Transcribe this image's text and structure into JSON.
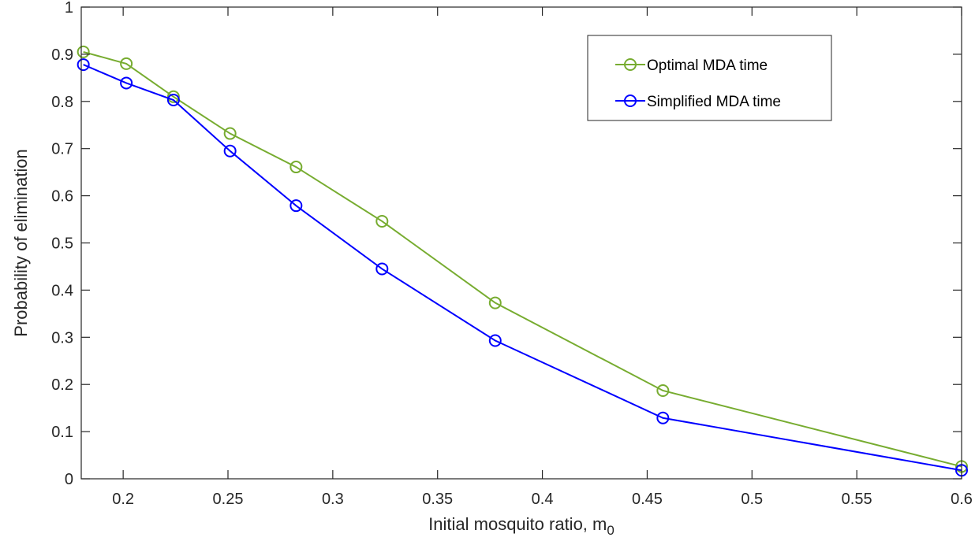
{
  "chart_data": {
    "type": "line",
    "xlabel": "Initial mosquito ratio, m",
    "xlabel_sub": "0",
    "ylabel": "Probability of elimination",
    "xlim": [
      0.18,
      0.6
    ],
    "ylim": [
      0,
      1
    ],
    "xticks": [
      0.2,
      0.25,
      0.3,
      0.35,
      0.4,
      0.45,
      0.5,
      0.55,
      0.6
    ],
    "xtick_labels": [
      "0.2",
      "0.25",
      "0.3",
      "0.35",
      "0.4",
      "0.45",
      "0.5",
      "0.55",
      "0.6"
    ],
    "yticks": [
      0,
      0.1,
      0.2,
      0.3,
      0.4,
      0.5,
      0.6,
      0.7,
      0.8,
      0.9,
      1
    ],
    "ytick_labels": [
      "0",
      "0.1",
      "0.2",
      "0.3",
      "0.4",
      "0.5",
      "0.6",
      "0.7",
      "0.8",
      "0.9",
      "1"
    ],
    "grid": false,
    "legend_position": "top-right",
    "series": [
      {
        "name": "Optimal MDA time",
        "color": "#77ac30",
        "marker": "circle",
        "x": [
          0.181,
          0.2015,
          0.224,
          0.251,
          0.2825,
          0.3235,
          0.3775,
          0.4575,
          0.6
        ],
        "y": [
          0.905,
          0.88,
          0.81,
          0.732,
          0.661,
          0.546,
          0.373,
          0.187,
          0.026
        ]
      },
      {
        "name": "Simplified MDA time",
        "color": "#0000ff",
        "marker": "circle",
        "x": [
          0.181,
          0.2015,
          0.224,
          0.251,
          0.2825,
          0.3235,
          0.3775,
          0.4575,
          0.6
        ],
        "y": [
          0.878,
          0.839,
          0.803,
          0.695,
          0.579,
          0.445,
          0.293,
          0.129,
          0.018
        ]
      }
    ]
  }
}
